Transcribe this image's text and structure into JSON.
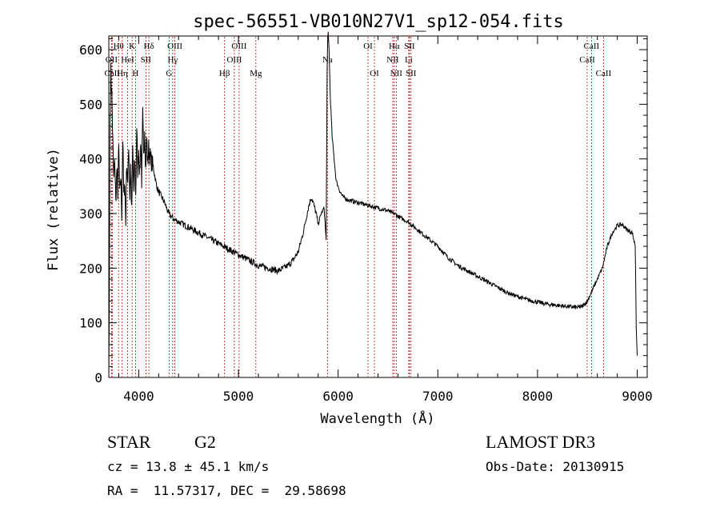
{
  "chart_data": {
    "type": "line",
    "title": "spec-56551-VB010N27V1_sp12-054.fits",
    "xlabel": "Wavelength (Å)",
    "ylabel": "Flux (relative)",
    "xlim": [
      3700,
      9100
    ],
    "ylim": [
      0,
      625
    ],
    "xticks": [
      4000,
      5000,
      6000,
      7000,
      8000,
      9000
    ],
    "yticks": [
      0,
      100,
      200,
      300,
      400,
      500,
      600
    ],
    "series": [
      {
        "name": "flux",
        "x": [
          3700,
          3705,
          3712,
          3720,
          3730,
          3740,
          3750,
          3760,
          3770,
          3780,
          3790,
          3800,
          3810,
          3820,
          3830,
          3840,
          3850,
          3860,
          3870,
          3880,
          3890,
          3900,
          3910,
          3920,
          3930,
          3940,
          3950,
          3960,
          3970,
          3980,
          3990,
          4000,
          4010,
          4020,
          4030,
          4040,
          4050,
          4060,
          4070,
          4080,
          4090,
          4100,
          4120,
          4150,
          4180,
          4200,
          4230,
          4260,
          4300,
          4350,
          4400,
          4500,
          4600,
          4700,
          4800,
          4900,
          5000,
          5100,
          5200,
          5300,
          5400,
          5500,
          5550,
          5600,
          5650,
          5700,
          5730,
          5750,
          5780,
          5800,
          5830,
          5860,
          5880,
          5890,
          5895,
          5900,
          5910,
          5920,
          5940,
          5960,
          5980,
          6000,
          6020,
          6050,
          6100,
          6200,
          6300,
          6400,
          6500,
          6550,
          6563,
          6600,
          6700,
          6800,
          6900,
          7000,
          7100,
          7200,
          7300,
          7400,
          7500,
          7600,
          7700,
          7800,
          7900,
          8000,
          8100,
          8200,
          8300,
          8400,
          8450,
          8500,
          8550,
          8600,
          8650,
          8700,
          8750,
          8800,
          8850,
          8900,
          8950,
          8980,
          8990,
          9000
        ],
        "y": [
          0,
          130,
          470,
          560,
          520,
          430,
          360,
          400,
          320,
          380,
          340,
          420,
          330,
          370,
          300,
          440,
          330,
          360,
          280,
          400,
          350,
          430,
          330,
          390,
          300,
          420,
          340,
          400,
          330,
          460,
          380,
          420,
          370,
          440,
          360,
          480,
          400,
          460,
          380,
          440,
          390,
          420,
          400,
          380,
          350,
          340,
          330,
          320,
          300,
          290,
          285,
          275,
          265,
          255,
          245,
          235,
          225,
          215,
          205,
          200,
          195,
          205,
          215,
          230,
          265,
          310,
          330,
          320,
          300,
          280,
          300,
          310,
          250,
          560,
          610,
          630,
          600,
          520,
          440,
          400,
          360,
          350,
          340,
          330,
          325,
          320,
          315,
          310,
          305,
          300,
          300,
          295,
          285,
          270,
          255,
          240,
          220,
          205,
          195,
          185,
          175,
          165,
          155,
          148,
          142,
          138,
          134,
          132,
          130,
          128,
          130,
          140,
          160,
          180,
          200,
          240,
          265,
          278,
          280,
          270,
          265,
          240,
          90,
          40
        ]
      }
    ],
    "lines": [
      {
        "label": "Hθ",
        "wave": 3798,
        "row": 1
      },
      {
        "label": "OII",
        "wave": 3727,
        "row": 2
      },
      {
        "label": "CaII",
        "wave": 3734,
        "row": 3
      },
      {
        "label": "Hη",
        "wave": 3835,
        "row": 3
      },
      {
        "label": "HeI",
        "wave": 3889,
        "row": 2
      },
      {
        "label": "K",
        "wave": 3934,
        "row": 1
      },
      {
        "label": "H",
        "wave": 3968,
        "row": 3
      },
      {
        "label": "SII",
        "wave": 4072,
        "row": 2
      },
      {
        "label": "Hδ",
        "wave": 4102,
        "row": 1
      },
      {
        "label": "G",
        "wave": 4305,
        "row": 3
      },
      {
        "label": "OIII",
        "wave": 4363,
        "row": 1
      },
      {
        "label": "Hγ",
        "wave": 4341,
        "row": 2
      },
      {
        "label": "Hβ",
        "wave": 4861,
        "row": 3
      },
      {
        "label": "OIII",
        "wave": 4959,
        "row": 2
      },
      {
        "label": "OIII",
        "wave": 5007,
        "row": 1
      },
      {
        "label": "Mg",
        "wave": 5175,
        "row": 3
      },
      {
        "label": "Na",
        "wave": 5893,
        "row": 2
      },
      {
        "label": "OI",
        "wave": 6300,
        "row": 1
      },
      {
        "label": "OI",
        "wave": 6364,
        "row": 3
      },
      {
        "label": "Hα",
        "wave": 6563,
        "row": 1
      },
      {
        "label": "NII",
        "wave": 6548,
        "row": 2
      },
      {
        "label": "NII",
        "wave": 6583,
        "row": 3
      },
      {
        "label": "SII",
        "wave": 6716,
        "row": 1
      },
      {
        "label": "Li",
        "wave": 6708,
        "row": 2
      },
      {
        "label": "SII",
        "wave": 6731,
        "row": 3
      },
      {
        "label": "CaII",
        "wave": 8542,
        "row": 1
      },
      {
        "label": "CaII",
        "wave": 8498,
        "row": 2
      },
      {
        "label": "CaII",
        "wave": 8662,
        "row": 3
      }
    ],
    "info": {
      "class": "STAR",
      "subclass": "G2",
      "cz": "cz = 13.8 ± 45.1 km/s",
      "coords": "RA =  11.57317, DEC =  29.58698",
      "survey": "LAMOST DR3",
      "obsdate": "Obs-Date: 20130915"
    },
    "colors": {
      "axis": "#000000",
      "line": "#000000",
      "marker": "#cc0000"
    }
  }
}
